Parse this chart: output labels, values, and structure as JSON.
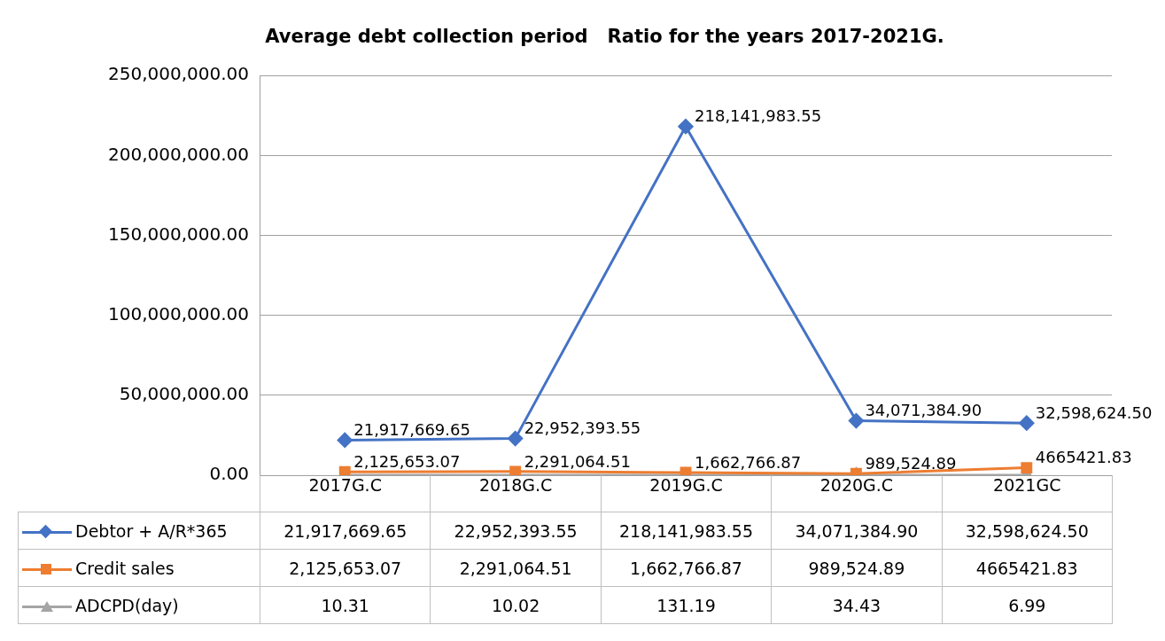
{
  "chart_data": {
    "type": "line",
    "title": "Average debt collection period   Ratio for the years 2017-2021G.",
    "categories": [
      "2017G.C",
      "2018G.C",
      "2019G.C",
      "2020G.C",
      "2021GC"
    ],
    "series": [
      {
        "name": "Debtor + A/R*365",
        "color": "#4472c4",
        "marker": "diamond",
        "values": [
          21917669.65,
          22952393.55,
          218141983.55,
          34071384.9,
          32598624.5
        ],
        "value_labels": [
          "21,917,669.65",
          "22,952,393.55",
          "218,141,983.55",
          "34,071,384.90",
          "32,598,624.50"
        ]
      },
      {
        "name": "Credit sales",
        "color": "#ed7d31",
        "marker": "square",
        "values": [
          2125653.07,
          2291064.51,
          1662766.87,
          989524.89,
          4665421.83
        ],
        "value_labels": [
          "2,125,653.07",
          "2,291,064.51",
          "1,662,766.87",
          "989,524.89",
          "4665421.83"
        ]
      },
      {
        "name": "ADCPD(day)",
        "color": "#a5a5a5",
        "marker": "triangle",
        "values": [
          10.31,
          10.02,
          131.19,
          34.43,
          6.99
        ],
        "value_labels": [
          "10.31",
          "10.02",
          "131.19",
          "34.43",
          "6.99"
        ]
      }
    ],
    "ylim": [
      0,
      250000000
    ],
    "yticks": [
      {
        "value": 0,
        "label": "0.00"
      },
      {
        "value": 50000000,
        "label": "50,000,000.00"
      },
      {
        "value": 100000000,
        "label": "100,000,000.00"
      },
      {
        "value": 150000000,
        "label": "150,000,000.00"
      },
      {
        "value": 200000000,
        "label": "200,000,000.00"
      },
      {
        "value": 250000000,
        "label": "250,000,000.00"
      }
    ],
    "grid": "y",
    "legend": "bottom",
    "line_style": "solid"
  }
}
